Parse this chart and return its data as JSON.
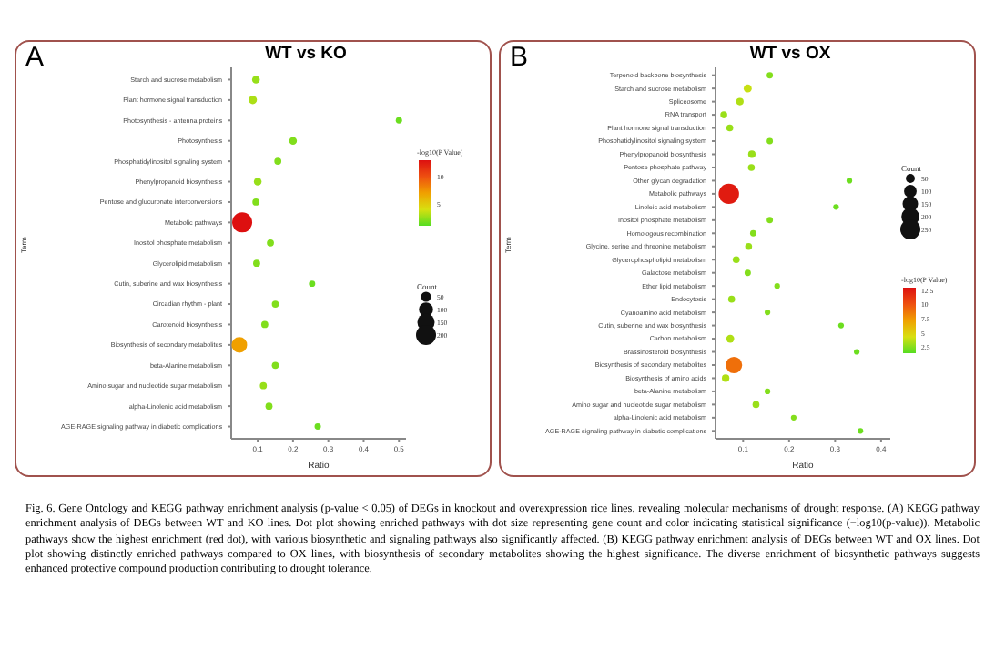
{
  "chart_data": [
    {
      "type": "bubble",
      "title": "WT vs KO",
      "xlabel": "Ratio",
      "ylabel": "Term",
      "orientation": "horizontal",
      "legend_title": "Count",
      "clabel": "-log10(P Value)",
      "annotations": [
        "A",
        "Fig. 6. Gene Ontology and KEGG pathway enrichment analysis (p-value < 0.05) of DEGs in knockout and overexpression rice lines, revealing molecular mechanisms of drought response. (A) KEGG pathway enrichment analysis of DEGs between WT and KO lines. Dot plot showing enriched pathways with dot size representing gene count and color indicating statistical significance (−log10(p-value)). Metabolic pathways show the highest enrichment (red dot), with various biosynthetic and signaling pathways also significantly affected. (B) KEGG pathway enrichment analysis of DEGs between WT and OX lines. Dot plot showing distinctly enriched pathways compared to OX lines, with biosynthesis of secondary metabolites showing the highest significance. The diverse enrichment of biosynthetic pathways suggests enhanced protective compound production contributing to drought tolerance."
      ],
      "categories": [
        "Starch and sucrose metabolism",
        "Plant hormone signal transduction",
        "Photosynthesis - antenna proteins",
        "Photosynthesis",
        "Phosphatidylinositol signaling system",
        "Phenylpropanoid biosynthesis",
        "Pentose and glucuronate interconversions",
        "Metabolic pathways",
        "Inositol phosphate metabolism",
        "Glycerolipid metabolism",
        "Cutin, suberine and wax biosynthesis",
        "Circadian rhythm - plant",
        "Carotenoid biosynthesis",
        "Biosynthesis of secondary metabolites",
        "beta-Alanine metabolism",
        "Amino sugar and nucleotide sugar metabolism",
        "alpha-Linolenic acid metabolism",
        "AGE-RAGE signaling pathway in diabetic complications"
      ],
      "values": [
        0.095,
        0.086,
        0.5,
        0.2,
        0.157,
        0.1,
        0.095,
        0.056,
        0.136,
        0.097,
        0.254,
        0.15,
        0.12,
        0.048,
        0.15,
        0.116,
        0.132,
        0.27
      ],
      "sizes": [
        30,
        35,
        20,
        30,
        25,
        30,
        25,
        200,
        25,
        25,
        20,
        25,
        25,
        120,
        25,
        25,
        25,
        20
      ],
      "cvalues": [
        2.5,
        3,
        1.5,
        2,
        2,
        2.5,
        2,
        13,
        2,
        2,
        1.5,
        2,
        2,
        7,
        2,
        2.5,
        2,
        1.5
      ],
      "clim": [
        1,
        13
      ],
      "cticks": [
        5,
        10
      ],
      "size_legend": [
        50,
        100,
        150,
        200
      ],
      "xlim": [
        0.025,
        0.52
      ],
      "xticks": [
        0.1,
        0.2,
        0.3,
        0.4,
        0.5
      ]
    },
    {
      "type": "bubble",
      "title": "WT vs OX",
      "xlabel": "Ratio",
      "ylabel": "Term",
      "orientation": "horizontal",
      "legend_title": "Count",
      "clabel": "-log10(P Value)",
      "annotations": [
        "B"
      ],
      "categories": [
        "Terpenoid backbone biosynthesis",
        "Starch and sucrose metabolism",
        "Spliceosome",
        "RNA transport",
        "Plant hormone signal transduction",
        "Phosphatidylinositol signaling system",
        "Phenylpropanoid biosynthesis",
        "Pentose phosphate pathway",
        "Other glycan degradation",
        "Metabolic pathways",
        "Linoleic acid metabolism",
        "Inositol phosphate metabolism",
        "Homologous recombination",
        "Glycine, serine and threonine metabolism",
        "Glycerophospholipid metabolism",
        "Galactose metabolism",
        "Ether lipid metabolism",
        "Endocytosis",
        "Cyanoamino acid metabolism",
        "Cutin, suberine and wax biosynthesis",
        "Carbon metabolism",
        "Brassinosteroid biosynthesis",
        "Biosynthesis of secondary metabolites",
        "Biosynthesis of amino acids",
        "beta-Alanine metabolism",
        "Amino sugar and nucleotide sugar metabolism",
        "alpha-Linolenic acid metabolism",
        "AGE-RAGE signaling pathway in diabetic complications"
      ],
      "values": [
        0.158,
        0.11,
        0.093,
        0.058,
        0.071,
        0.158,
        0.119,
        0.118,
        0.331,
        0.069,
        0.302,
        0.158,
        0.122,
        0.112,
        0.085,
        0.11,
        0.174,
        0.075,
        0.153,
        0.313,
        0.072,
        0.347,
        0.08,
        0.062,
        0.153,
        0.128,
        0.21,
        0.355
      ],
      "sizes": [
        25,
        40,
        35,
        30,
        30,
        25,
        35,
        30,
        20,
        260,
        20,
        25,
        25,
        30,
        30,
        25,
        20,
        30,
        20,
        20,
        40,
        20,
        170,
        35,
        20,
        30,
        20,
        20
      ],
      "cvalues": [
        2.5,
        4,
        3.5,
        3,
        3,
        2.5,
        3,
        3,
        2,
        12.5,
        2,
        2.5,
        2.5,
        3,
        3,
        2.5,
        2.5,
        3,
        2.5,
        2,
        3.5,
        2,
        9,
        3.5,
        2.5,
        3,
        2.5,
        2
      ],
      "clim": [
        1.5,
        13
      ],
      "cticks": [
        2.5,
        5.0,
        7.5,
        10.0,
        12.5
      ],
      "size_legend": [
        50,
        100,
        150,
        200,
        250
      ],
      "xlim": [
        0.04,
        0.42
      ],
      "xticks": [
        0.1,
        0.2,
        0.3,
        0.4
      ]
    }
  ]
}
